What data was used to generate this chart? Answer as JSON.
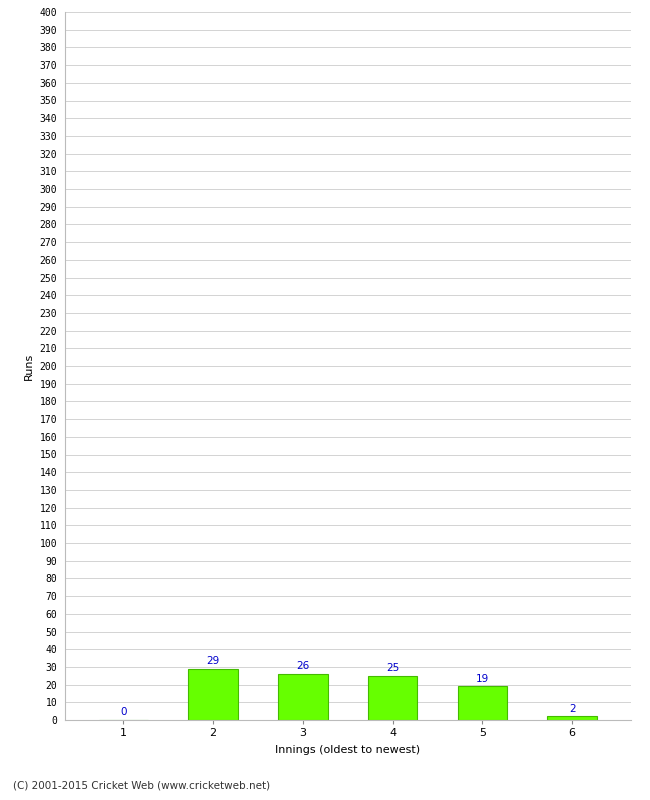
{
  "categories": [
    "1",
    "2",
    "3",
    "4",
    "5",
    "6"
  ],
  "values": [
    0,
    29,
    26,
    25,
    19,
    2
  ],
  "bar_color": "#66ff00",
  "bar_edge_color": "#44bb00",
  "label_color": "#0000cc",
  "xlabel": "Innings (oldest to newest)",
  "ylabel": "Runs",
  "ylim": [
    0,
    400
  ],
  "ytick_step": 10,
  "background_color": "#ffffff",
  "grid_color": "#cccccc",
  "footer": "(C) 2001-2015 Cricket Web (www.cricketweb.net)"
}
